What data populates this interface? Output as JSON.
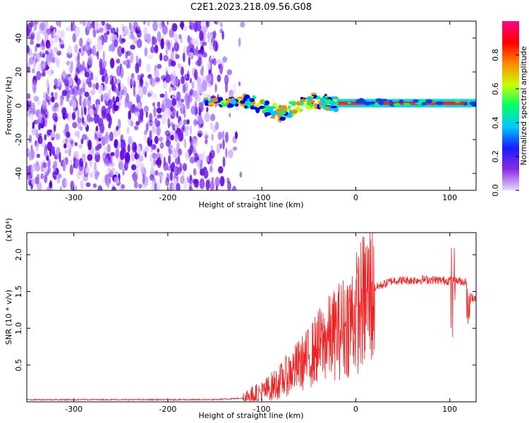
{
  "figure": {
    "title": "C2E1.2023.218.09.56.G08"
  },
  "chart_data": [
    {
      "type": "heatmap",
      "xlabel": "Height of straight line (km)",
      "ylabel": "Frequency (Hz)",
      "xlim": [
        -350,
        128
      ],
      "ylim": [
        -50,
        50
      ],
      "xticks": [
        -300,
        -200,
        -100,
        0,
        100
      ],
      "yticks": [
        -40,
        -20,
        0,
        20,
        40
      ],
      "noise_region_x": [
        -350,
        -120
      ],
      "blank_region_x": [
        -120,
        128
      ],
      "bright_feature": {
        "x": [
          -110,
          -80,
          -60,
          -45,
          -30,
          0,
          40,
          80,
          100,
          128
        ],
        "y": [
          2,
          -5,
          1,
          3,
          2,
          1,
          1,
          1,
          2,
          2
        ]
      },
      "colorbar": {
        "label": "Normalized spectral amplitude",
        "range": [
          0.0,
          1.0
        ],
        "ticks": [
          "0.0",
          "0.2",
          "0.4",
          "0.6",
          "0.8"
        ],
        "colors": [
          "#e8d8ff",
          "#8a2be2",
          "#1a1aff",
          "#00c8ff",
          "#00ff66",
          "#c8ff00",
          "#ff8800",
          "#ff0000",
          "#ff0088"
        ]
      }
    },
    {
      "type": "line",
      "xlabel": "Height of straight line (km)",
      "ylabel": "SNR (10 * v/v)",
      "scale_label": "(x10⁴)",
      "xlim": [
        -350,
        128
      ],
      "ylim": [
        0,
        2.3
      ],
      "xticks": [
        -300,
        -200,
        -100,
        0,
        100
      ],
      "yticks": [
        "0.5",
        "1.0",
        "1.5",
        "2.0"
      ],
      "ytick_values": [
        0.5,
        1.0,
        1.5,
        2.0
      ],
      "color": "#ee2222",
      "x": [
        -350,
        -300,
        -250,
        -200,
        -150,
        -120,
        -110,
        -100,
        -90,
        -80,
        -70,
        -60,
        -50,
        -40,
        -30,
        -20,
        -10,
        0,
        10,
        20,
        30,
        40,
        50,
        60,
        70,
        80,
        90,
        95,
        100,
        105,
        110,
        118,
        120,
        122,
        128
      ],
      "y": [
        0.03,
        0.03,
        0.03,
        0.03,
        0.03,
        0.05,
        0.08,
        0.12,
        0.2,
        0.28,
        0.4,
        0.5,
        0.6,
        0.75,
        0.85,
        0.95,
        1.05,
        1.2,
        1.4,
        1.55,
        1.6,
        1.65,
        1.65,
        1.65,
        1.66,
        1.66,
        1.65,
        1.65,
        1.65,
        1.65,
        1.64,
        1.63,
        1.62,
        1.42,
        1.42
      ]
    }
  ]
}
